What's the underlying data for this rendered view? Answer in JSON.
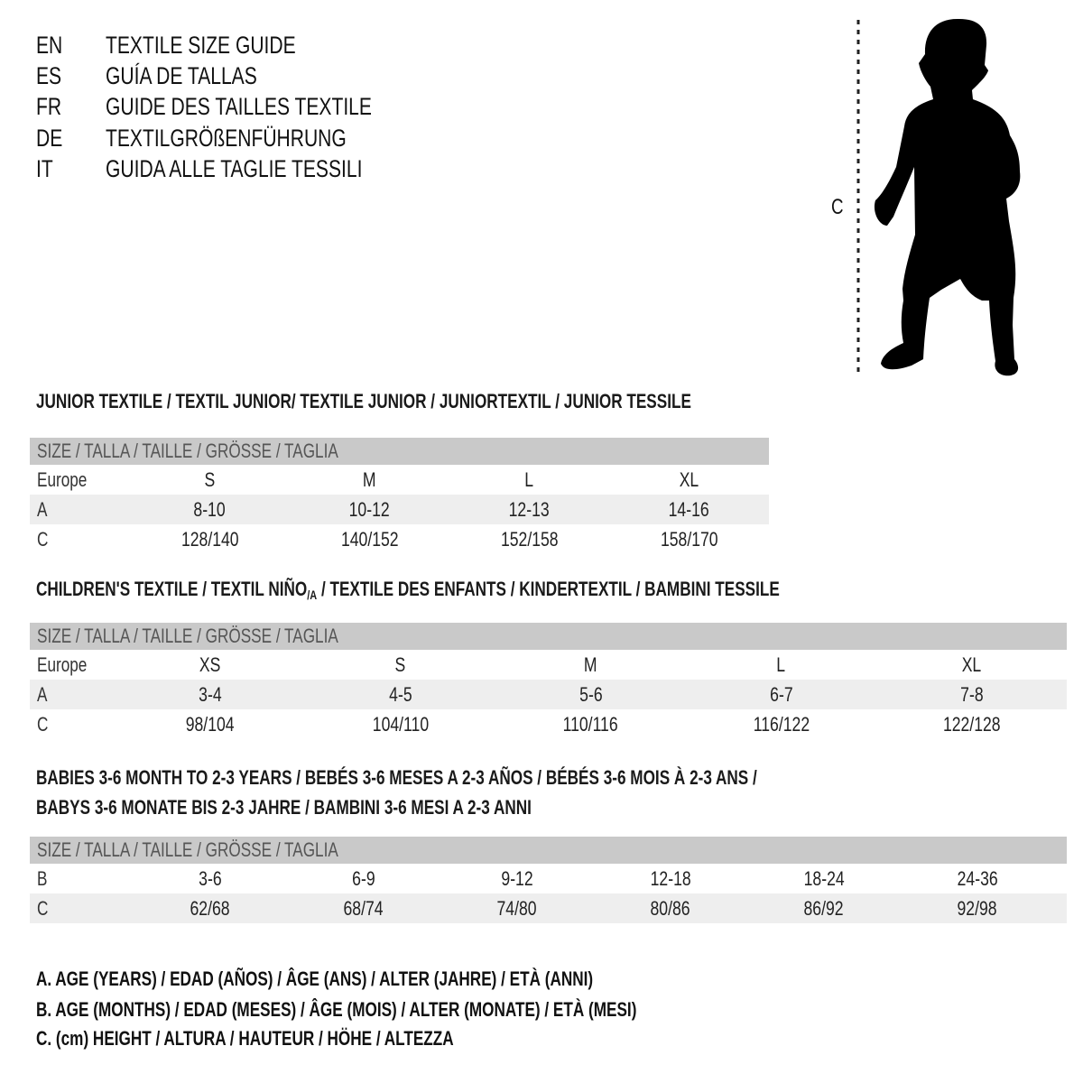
{
  "header": {
    "lines": [
      {
        "lang": "EN",
        "title": "TEXTILE SIZE GUIDE"
      },
      {
        "lang": "ES",
        "title": "GUÍA DE TALLAS"
      },
      {
        "lang": "FR",
        "title": "GUIDE DES TAILLES TEXTILE"
      },
      {
        "lang": "DE",
        "title": "TEXTILGRÖßENFÜHRUNG"
      },
      {
        "lang": "IT",
        "title": "GUIDA ALLE TAGLIE TESSILI"
      }
    ]
  },
  "figure": {
    "measure_label": "C",
    "icon": "child-silhouette"
  },
  "junior": {
    "title": "JUNIOR TEXTILE / TEXTIL JUNIOR/ TEXTILE JUNIOR / JUNIORTEXTIL / JUNIOR TESSILE",
    "header": "SIZE / TALLA / TAILLE / GRÖSSE / TAGLIA",
    "rows": [
      {
        "label": "Europe",
        "values": [
          "S",
          "M",
          "L",
          "XL"
        ]
      },
      {
        "label": "A",
        "values": [
          "8-10",
          "10-12",
          "12-13",
          "14-16"
        ]
      },
      {
        "label": "C",
        "values": [
          "128/140",
          "140/152",
          "152/158",
          "158/170"
        ]
      }
    ]
  },
  "children": {
    "title_a": "CHILDREN'S TEXTILE / TEXTIL NIÑO",
    "title_sub": "/A",
    "title_b": " / TEXTILE DES ENFANTS / KINDERTEXTIL / BAMBINI TESSILE",
    "header": "SIZE / TALLA / TAILLE / GRÖSSE / TAGLIA",
    "rows": [
      {
        "label": "Europe",
        "values": [
          "XS",
          "S",
          "M",
          "L",
          "XL"
        ]
      },
      {
        "label": "A",
        "values": [
          "3-4",
          "4-5",
          "5-6",
          "6-7",
          "7-8"
        ]
      },
      {
        "label": "C",
        "values": [
          "98/104",
          "104/110",
          "110/116",
          "116/122",
          "122/128"
        ]
      }
    ]
  },
  "babies": {
    "title_1": "BABIES 3-6 MONTH TO 2-3 YEARS / BEBÉS 3-6 MESES A 2-3 AÑOS / BÉBÉS 3-6 MOIS À 2-3 ANS /",
    "title_2": "BABYS 3-6 MONATE BIS 2-3 JAHRE / BAMBINI 3-6 MESI A 2-3 ANNI",
    "header": "SIZE / TALLA / TAILLE / GRÖSSE / TAGLIA",
    "rows": [
      {
        "label": "B",
        "values": [
          "3-6",
          "6-9",
          "9-12",
          "12-18",
          "18-24",
          "24-36"
        ]
      },
      {
        "label": "C",
        "values": [
          "62/68",
          "68/74",
          "74/80",
          "80/86",
          "86/92",
          "92/98"
        ]
      }
    ]
  },
  "legend": [
    "A. AGE (YEARS) / EDAD (AÑOS) / ÂGE (ANS) / ALTER (JAHRE) / ETÀ (ANNI)",
    "B. AGE (MONTHS) / EDAD (MESES) / ÂGE (MOIS) / ALTER (MONATE) / ETÀ (MESI)",
    "C. (cm) HEIGHT / ALTURA / HAUTEUR / HÖHE / ALTEZZA"
  ]
}
